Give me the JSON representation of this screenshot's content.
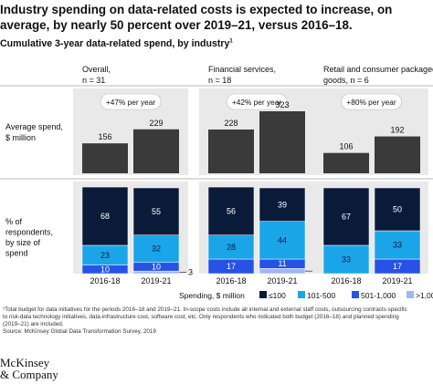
{
  "title": "Industry spending on data-related costs is expected to increase, on average, by nearly 50 percent over 2019–21, versus 2016–18.",
  "subtitle": "Cumulative 3-year data-related spend, by industry",
  "subtitle_sup": "1",
  "row_labels": {
    "avg_line1": "Average spend,",
    "avg_line2": "$ million",
    "pct_line1": "% of",
    "pct_line2": "respondents,",
    "pct_line3": "by size of",
    "pct_line4": "spend"
  },
  "chart_data": {
    "type": "bar",
    "colors": {
      "lte100": "#0a1b3a",
      "r101_500": "#1aa5e8",
      "r501_1000": "#2851e6",
      "gt1000": "#9fb8f4",
      "avg_bar": "#3a3a3a",
      "panel_bg": "#e9e9e9"
    },
    "legend": {
      "title": "Spending, $ million",
      "items": [
        {
          "key": "lte100",
          "label": "≤100"
        },
        {
          "key": "r101_500",
          "label": "101-500"
        },
        {
          "key": "r501_1000",
          "label": "501-1,000"
        },
        {
          "key": "gt1000",
          "label": ">1,000"
        }
      ]
    },
    "groups": [
      {
        "name_line1": "Overall,",
        "name_line2": "n = 31",
        "growth": "+47% per year",
        "periods": [
          "2016-18",
          "2019-21"
        ],
        "avg_spend": [
          156,
          229
        ],
        "distribution": [
          {
            "lte100": 68,
            "r101_500": 23,
            "r501_1000": 10,
            "gt1000": 0
          },
          {
            "lte100": 55,
            "r101_500": 32,
            "r501_1000": 10,
            "gt1000": 3
          }
        ]
      },
      {
        "name_line1": "Financial services,",
        "name_line2": "n = 18",
        "growth": "+42% per year",
        "periods": [
          "2016-18",
          "2019-21"
        ],
        "avg_spend": [
          228,
          323
        ],
        "distribution": [
          {
            "lte100": 56,
            "r101_500": 28,
            "r501_1000": 17,
            "gt1000": 0
          },
          {
            "lte100": 39,
            "r101_500": 44,
            "r501_1000": 11,
            "gt1000": 6
          }
        ]
      },
      {
        "name_line1": "Retail and consumer packaged",
        "name_line2": "goods, n = 6",
        "growth": "+80% per year",
        "periods": [
          "2016-18",
          "2019-21"
        ],
        "avg_spend": [
          106,
          192
        ],
        "distribution": [
          {
            "lte100": 67,
            "r101_500": 33,
            "r501_1000": 0,
            "gt1000": 0
          },
          {
            "lte100": 50,
            "r101_500": 33,
            "r501_1000": 17,
            "gt1000": 0
          }
        ]
      }
    ],
    "ylim_avg": [
      0,
      340
    ]
  },
  "footnote": {
    "line1": "¹Total budget for data initiatives for the periods 2016–18 and 2019–21. In-scope costs include all internal and external staff costs, outsourcing contracts specific",
    "line2": "to risk-data technology initiatives, data-infrastructure cost, software cost, etc. Only respondents who indicated both budget (2016–18) and planned spending",
    "line3": "(2019–21) are included.",
    "source": "Source: McKinsey Global Data Transformation Survey, 2019"
  },
  "logo": {
    "line1": "McKinsey",
    "line2": "& Company"
  }
}
